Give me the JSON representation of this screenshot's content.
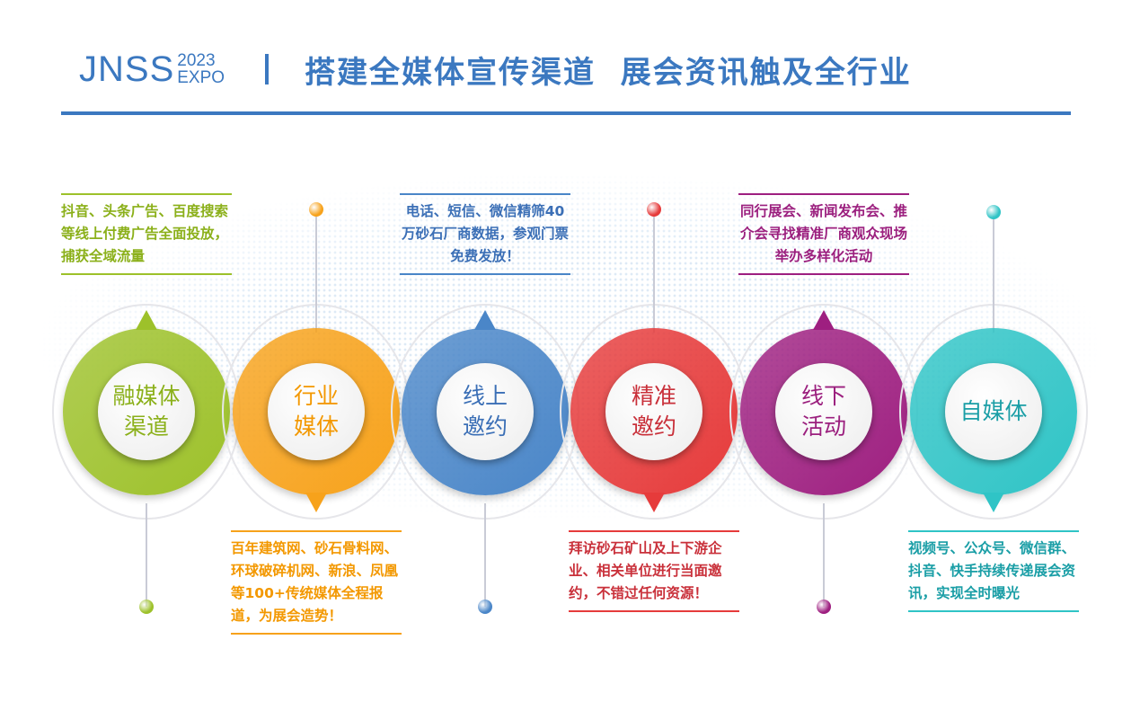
{
  "header": {
    "logo": "JNSS",
    "logo_year": "2023",
    "logo_expo": "EXPO",
    "title": "搭建全媒体宣传渠道  展会资讯触及全行业",
    "color": "#3b78c0"
  },
  "items": [
    {
      "label": "融媒体\n渠道",
      "text": "抖音、头条广告、百度搜索等线上付费广告全面投放，捕获全域流量",
      "color": "#9dc12a",
      "text_color": "#8bb01a",
      "position": "top",
      "align": "left"
    },
    {
      "label": "行业\n媒体",
      "text": "百年建筑网、砂石骨料网、环球破碎机网、新浪、凤凰等100+传统媒体全程报道，为展会造势！",
      "color": "#f7a21b",
      "text_color": "#f39800",
      "position": "bottom",
      "align": "left"
    },
    {
      "label": "线上\n邀约",
      "text": "电话、短信、微信精筛40万砂石厂商数据，参观门票免费发放！",
      "color": "#4a86c8",
      "text_color": "#3b6fb6",
      "position": "top",
      "align": "center"
    },
    {
      "label": "精准\n邀约",
      "text": "拜访砂石矿山及上下游企业、相关单位进行当面邀约，不错过任何资源！",
      "color": "#e63b3b",
      "text_color": "#c9303a",
      "position": "bottom",
      "align": "left"
    },
    {
      "label": "线下\n活动",
      "text": "同行展会、新闻发布会、推介会寻找精准厂商观众现场举办多样化活动",
      "color": "#9e1f80",
      "text_color": "#9b1f7e",
      "position": "top",
      "align": "center"
    },
    {
      "label": "自媒体",
      "text": "视频号、公众号、微信群、抖音、快手持续传递展会资讯，实现全时曝光",
      "color": "#2fc4c6",
      "text_color": "#1a9ea6",
      "position": "bottom",
      "align": "left"
    }
  ]
}
